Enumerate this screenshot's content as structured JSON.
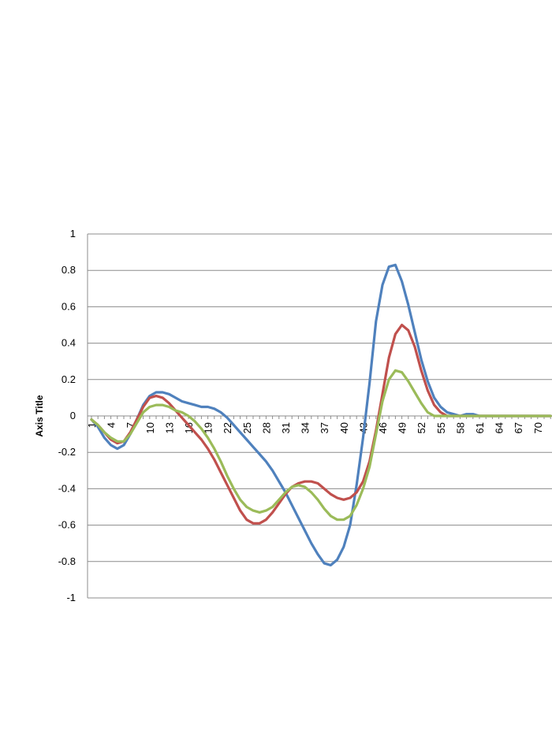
{
  "chart_data": {
    "type": "line",
    "title": "",
    "ylabel": "Axis Title",
    "xlabel": "",
    "ylim": [
      -1,
      1
    ],
    "grid": "horizontal",
    "y_ticks": [
      "1",
      "0.8",
      "0.6",
      "0.4",
      "0.2",
      "0",
      "-0.2",
      "-0.4",
      "-0.6",
      "-0.8",
      "-1"
    ],
    "x_tick_labels": [
      "1",
      "4",
      "7",
      "10",
      "13",
      "16",
      "19",
      "22",
      "25",
      "28",
      "31",
      "34",
      "37",
      "40",
      "43",
      "46",
      "49",
      "52",
      "55",
      "58",
      "61",
      "64",
      "67",
      "70"
    ],
    "x": [
      1,
      2,
      3,
      4,
      5,
      6,
      7,
      8,
      9,
      10,
      11,
      12,
      13,
      14,
      15,
      16,
      17,
      18,
      19,
      20,
      21,
      22,
      23,
      24,
      25,
      26,
      27,
      28,
      29,
      30,
      31,
      32,
      33,
      34,
      35,
      36,
      37,
      38,
      39,
      40,
      41,
      42,
      43,
      44,
      45,
      46,
      47,
      48,
      49,
      50,
      51,
      52,
      53,
      54,
      55,
      56,
      57,
      58,
      59,
      60,
      61,
      62,
      63,
      64,
      65,
      66,
      67,
      68,
      69,
      70,
      71,
      72
    ],
    "series": [
      {
        "color": "#4F81BD",
        "values": [
          -0.02,
          -0.06,
          -0.12,
          -0.16,
          -0.18,
          -0.16,
          -0.1,
          -0.02,
          0.06,
          0.11,
          0.13,
          0.13,
          0.12,
          0.1,
          0.08,
          0.07,
          0.06,
          0.05,
          0.05,
          0.04,
          0.02,
          -0.01,
          -0.05,
          -0.09,
          -0.13,
          -0.17,
          -0.21,
          -0.25,
          -0.3,
          -0.36,
          -0.42,
          -0.49,
          -0.56,
          -0.63,
          -0.7,
          -0.76,
          -0.81,
          -0.82,
          -0.79,
          -0.72,
          -0.6,
          -0.38,
          -0.12,
          0.18,
          0.52,
          0.72,
          0.82,
          0.83,
          0.74,
          0.61,
          0.46,
          0.31,
          0.19,
          0.1,
          0.05,
          0.02,
          0.01,
          0.0,
          0.01,
          0.01,
          0.0,
          0.0,
          0.0,
          0.0,
          0.0,
          0.0,
          0.0,
          0.0,
          0.0,
          0.0,
          0.0,
          0.0
        ]
      },
      {
        "color": "#C0504D",
        "values": [
          -0.02,
          -0.05,
          -0.09,
          -0.13,
          -0.15,
          -0.14,
          -0.09,
          -0.02,
          0.05,
          0.1,
          0.11,
          0.1,
          0.07,
          0.03,
          -0.01,
          -0.05,
          -0.09,
          -0.13,
          -0.18,
          -0.24,
          -0.31,
          -0.38,
          -0.45,
          -0.52,
          -0.57,
          -0.59,
          -0.59,
          -0.57,
          -0.53,
          -0.48,
          -0.43,
          -0.39,
          -0.37,
          -0.36,
          -0.36,
          -0.37,
          -0.4,
          -0.43,
          -0.45,
          -0.46,
          -0.45,
          -0.42,
          -0.36,
          -0.25,
          -0.08,
          0.12,
          0.32,
          0.45,
          0.5,
          0.47,
          0.38,
          0.25,
          0.14,
          0.06,
          0.02,
          0.0,
          0.0,
          0.0,
          0.0,
          0.0,
          0.0,
          0.0,
          0.0,
          0.0,
          0.0,
          0.0,
          0.0,
          0.0,
          0.0,
          0.0,
          0.0,
          0.0
        ]
      },
      {
        "color": "#9BBB59",
        "values": [
          -0.02,
          -0.05,
          -0.09,
          -0.12,
          -0.14,
          -0.14,
          -0.1,
          -0.04,
          0.02,
          0.05,
          0.06,
          0.06,
          0.05,
          0.03,
          0.02,
          0.0,
          -0.03,
          -0.07,
          -0.12,
          -0.18,
          -0.25,
          -0.33,
          -0.4,
          -0.46,
          -0.5,
          -0.52,
          -0.53,
          -0.52,
          -0.5,
          -0.46,
          -0.42,
          -0.39,
          -0.38,
          -0.39,
          -0.42,
          -0.46,
          -0.51,
          -0.55,
          -0.57,
          -0.57,
          -0.55,
          -0.49,
          -0.4,
          -0.28,
          -0.1,
          0.08,
          0.2,
          0.25,
          0.24,
          0.19,
          0.13,
          0.07,
          0.02,
          0.0,
          0.0,
          0.0,
          0.0,
          0.0,
          0.0,
          0.0,
          0.0,
          0.0,
          0.0,
          0.0,
          0.0,
          0.0,
          0.0,
          0.0,
          0.0,
          0.0,
          0.0,
          0.0
        ]
      }
    ]
  }
}
